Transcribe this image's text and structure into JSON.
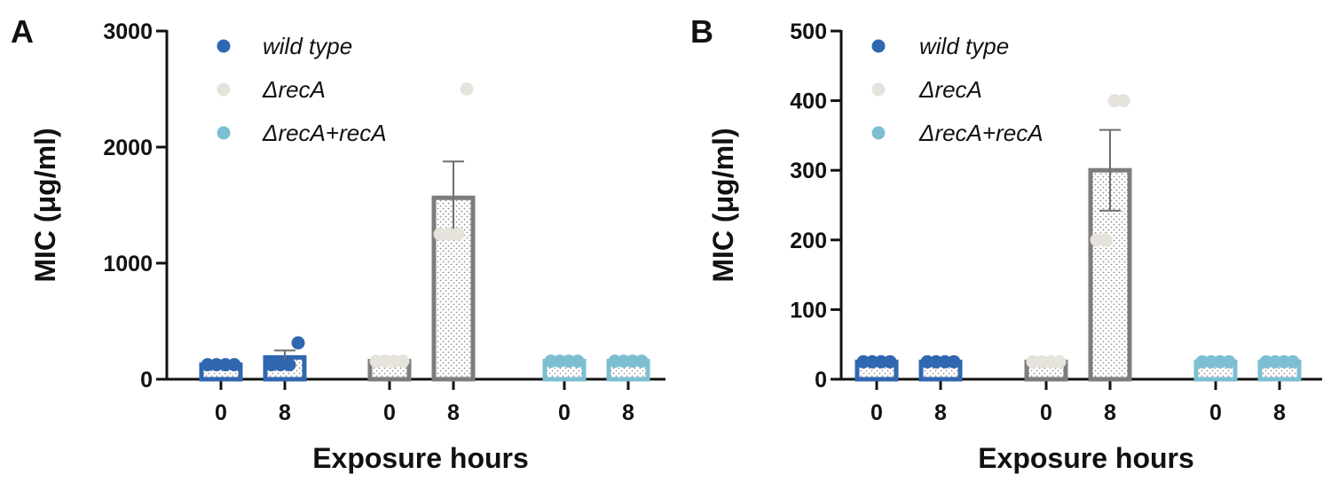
{
  "chart_data": [
    {
      "type": "bar",
      "panel_label": "A",
      "xlabel": "Exposure hours",
      "ylabel": "MIC (μg/ml)",
      "ylim": [
        0,
        3000
      ],
      "yticks": [
        0,
        1000,
        2000,
        3000
      ],
      "categories": [
        "0",
        "8",
        "0",
        "8",
        "0",
        "8"
      ],
      "legend_position": "top-left",
      "series": [
        {
          "name": "wild type",
          "color": "#2f67b1",
          "x": [
            "0",
            "8"
          ],
          "values": [
            125,
            188
          ],
          "error": [
            0,
            60
          ],
          "points": [
            [
              125,
              125,
              125,
              125
            ],
            [
              125,
              125,
              125,
              313
            ]
          ]
        },
        {
          "name": "ΔrecA",
          "color": "#e6e3dc",
          "x": [
            "0",
            "8"
          ],
          "values": [
            156,
            1563
          ],
          "error": [
            0,
            313
          ],
          "points": [
            [
              156,
              156,
              156,
              156
            ],
            [
              1250,
              1250,
              1250,
              2500
            ]
          ]
        },
        {
          "name": "ΔrecA+recA",
          "color": "#7cbfd3",
          "x": [
            "0",
            "8"
          ],
          "values": [
            156,
            156
          ],
          "error": [
            0,
            0
          ],
          "points": [
            [
              156,
              156,
              156,
              156
            ],
            [
              156,
              156,
              156,
              156
            ]
          ]
        }
      ]
    },
    {
      "type": "bar",
      "panel_label": "B",
      "xlabel": "Exposure hours",
      "ylabel": "MIC (μg/ml)",
      "ylim": [
        0,
        500
      ],
      "yticks": [
        0,
        100,
        200,
        300,
        400,
        500
      ],
      "categories": [
        "0",
        "8",
        "0",
        "8",
        "0",
        "8"
      ],
      "legend_position": "top-left",
      "series": [
        {
          "name": "wild type",
          "color": "#2f67b1",
          "x": [
            "0",
            "8"
          ],
          "values": [
            25,
            25
          ],
          "error": [
            0,
            0
          ],
          "points": [
            [
              25,
              25,
              25,
              25
            ],
            [
              25,
              25,
              25,
              25
            ]
          ]
        },
        {
          "name": "ΔrecA",
          "color": "#e6e3dc",
          "x": [
            "0",
            "8"
          ],
          "values": [
            25,
            300
          ],
          "error": [
            0,
            58
          ],
          "points": [
            [
              25,
              25,
              25,
              25
            ],
            [
              200,
              200,
              400,
              400
            ]
          ]
        },
        {
          "name": "ΔrecA+recA",
          "color": "#7cbfd3",
          "x": [
            "0",
            "8"
          ],
          "values": [
            25,
            25
          ],
          "error": [
            0,
            0
          ],
          "points": [
            [
              25,
              25,
              25,
              25
            ],
            [
              25,
              25,
              25,
              25
            ]
          ]
        }
      ]
    }
  ]
}
